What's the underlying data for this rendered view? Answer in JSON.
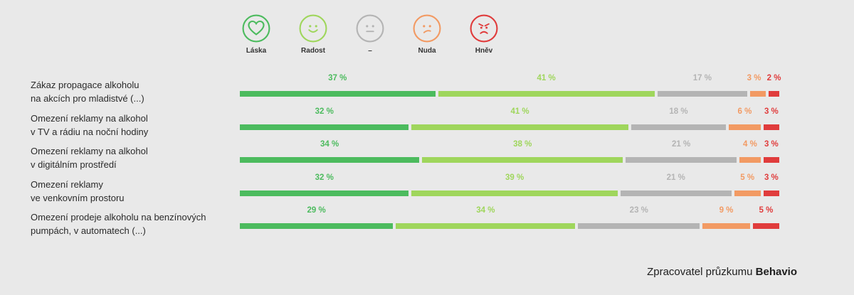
{
  "legend": [
    {
      "label": "Láska",
      "icon": "heart-icon",
      "color": "#4cbb5e"
    },
    {
      "label": "Radost",
      "icon": "smile-icon",
      "color": "#9fd65c"
    },
    {
      "label": "–",
      "icon": "neutral-face-icon",
      "color": "#b4b4b4"
    },
    {
      "label": "Nuda",
      "icon": "bored-face-icon",
      "color": "#f29a63"
    },
    {
      "label": "Hněv",
      "icon": "angry-face-icon",
      "color": "#e03c3c"
    }
  ],
  "chart_data": {
    "type": "bar",
    "stacked": true,
    "orientation": "horizontal",
    "categories": [
      [
        "Zákaz propagace alkoholu",
        "na akcích pro mladistvé (...)"
      ],
      [
        "Omezení reklamy na alkohol",
        "v TV a rádiu na noční hodiny"
      ],
      [
        "Omezení reklamy na alkohol",
        "v digitálním prostředí"
      ],
      [
        "Omezení reklamy",
        "ve venkovním prostoru"
      ],
      [
        "Omezení prodeje alkoholu na benzínových",
        "pumpách, v automatech (...)"
      ]
    ],
    "series": [
      {
        "name": "Láska",
        "color": "#4cbb5e",
        "values": [
          37,
          32,
          34,
          32,
          29
        ]
      },
      {
        "name": "Radost",
        "color": "#9fd65c",
        "values": [
          41,
          41,
          38,
          39,
          34
        ]
      },
      {
        "name": "–",
        "color": "#b4b4b4",
        "values": [
          17,
          18,
          21,
          21,
          23
        ]
      },
      {
        "name": "Nuda",
        "color": "#f29a63",
        "values": [
          3,
          6,
          4,
          5,
          9
        ]
      },
      {
        "name": "Hněv",
        "color": "#e03c3c",
        "values": [
          2,
          3,
          3,
          3,
          5
        ]
      }
    ],
    "value_suffix": " %",
    "legend_position": "top"
  },
  "footer": {
    "credit_prefix": "Zpracovatel průzkumu",
    "credit_brand": "Behavio"
  }
}
